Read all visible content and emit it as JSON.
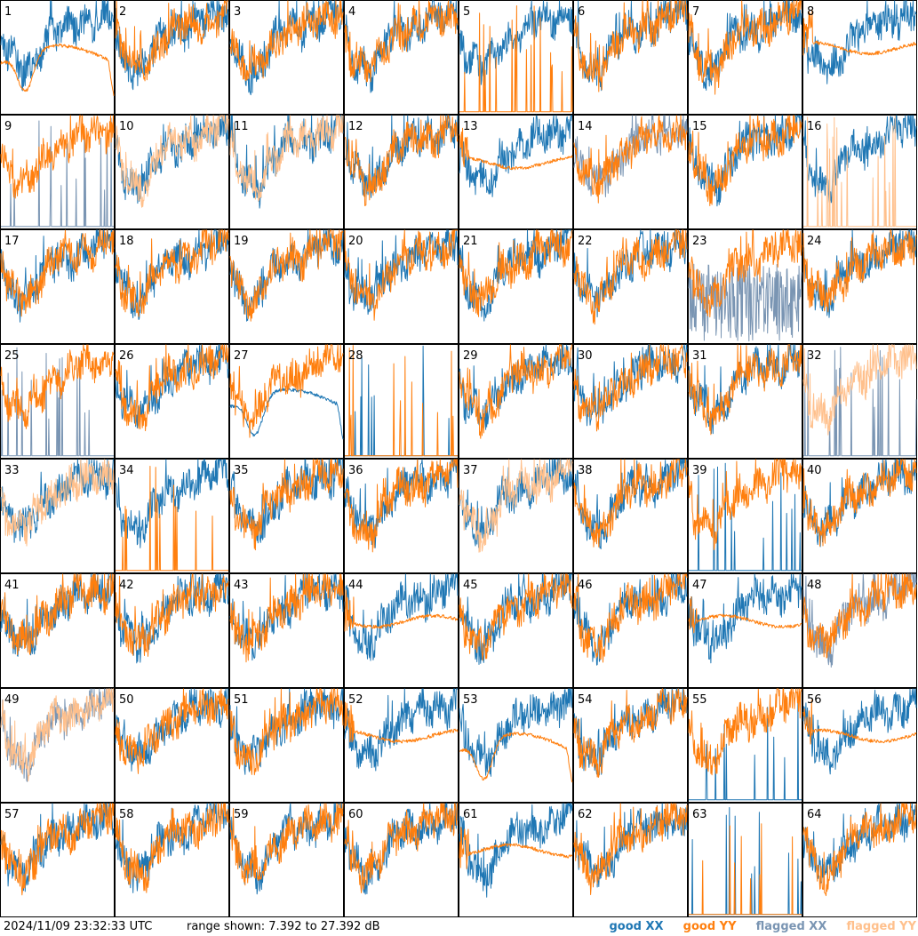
{
  "chart_data": {
    "type": "line",
    "panels": [
      {
        "label": "1",
        "xx": "good",
        "yy": "good",
        "xx_mode": "normal",
        "yy_mode": "dip"
      },
      {
        "label": "2",
        "xx": "good",
        "yy": "good",
        "xx_mode": "normal",
        "yy_mode": "normal"
      },
      {
        "label": "3",
        "xx": "good",
        "yy": "good",
        "xx_mode": "normal",
        "yy_mode": "normal"
      },
      {
        "label": "4",
        "xx": "good",
        "yy": "good",
        "xx_mode": "normal",
        "yy_mode": "normal"
      },
      {
        "label": "5",
        "xx": "good",
        "yy": "good",
        "xx_mode": "normal",
        "yy_mode": "spiky"
      },
      {
        "label": "6",
        "xx": "good",
        "yy": "good",
        "xx_mode": "normal",
        "yy_mode": "normal"
      },
      {
        "label": "7",
        "xx": "good",
        "yy": "good",
        "xx_mode": "normal",
        "yy_mode": "normal"
      },
      {
        "label": "8",
        "xx": "good",
        "yy": "good",
        "xx_mode": "normal",
        "yy_mode": "smooth"
      },
      {
        "label": "9",
        "xx": "flagged",
        "yy": "good",
        "xx_mode": "spiky",
        "yy_mode": "normal"
      },
      {
        "label": "10",
        "xx": "good",
        "yy": "flagged",
        "xx_mode": "normal",
        "yy_mode": "normal"
      },
      {
        "label": "11",
        "xx": "good",
        "yy": "flagged",
        "xx_mode": "normal",
        "yy_mode": "normal"
      },
      {
        "label": "12",
        "xx": "good",
        "yy": "good",
        "xx_mode": "normal",
        "yy_mode": "normal"
      },
      {
        "label": "13",
        "xx": "good",
        "yy": "good",
        "xx_mode": "normal",
        "yy_mode": "smooth"
      },
      {
        "label": "14",
        "xx": "flagged",
        "yy": "good",
        "xx_mode": "normal",
        "yy_mode": "normal"
      },
      {
        "label": "15",
        "xx": "good",
        "yy": "good",
        "xx_mode": "normal",
        "yy_mode": "normal"
      },
      {
        "label": "16",
        "xx": "good",
        "yy": "flagged",
        "xx_mode": "normal",
        "yy_mode": "spiky"
      },
      {
        "label": "17",
        "xx": "good",
        "yy": "good",
        "xx_mode": "normal",
        "yy_mode": "normal"
      },
      {
        "label": "18",
        "xx": "good",
        "yy": "good",
        "xx_mode": "normal",
        "yy_mode": "normal"
      },
      {
        "label": "19",
        "xx": "good",
        "yy": "good",
        "xx_mode": "normal",
        "yy_mode": "normal"
      },
      {
        "label": "20",
        "xx": "good",
        "yy": "good",
        "xx_mode": "normal",
        "yy_mode": "normal"
      },
      {
        "label": "21",
        "xx": "good",
        "yy": "good",
        "xx_mode": "normal",
        "yy_mode": "normal"
      },
      {
        "label": "22",
        "xx": "good",
        "yy": "good",
        "xx_mode": "normal",
        "yy_mode": "normal"
      },
      {
        "label": "23",
        "xx": "flagged",
        "yy": "good",
        "xx_mode": "noisy",
        "yy_mode": "normal"
      },
      {
        "label": "24",
        "xx": "good",
        "yy": "good",
        "xx_mode": "normal",
        "yy_mode": "normal"
      },
      {
        "label": "25",
        "xx": "flagged",
        "yy": "good",
        "xx_mode": "spiky",
        "yy_mode": "normal"
      },
      {
        "label": "26",
        "xx": "good",
        "yy": "good",
        "xx_mode": "normal",
        "yy_mode": "normal"
      },
      {
        "label": "27",
        "xx": "good",
        "yy": "good",
        "xx_mode": "dip",
        "yy_mode": "normal"
      },
      {
        "label": "28",
        "xx": "good",
        "yy": "good",
        "xx_mode": "spiky",
        "yy_mode": "spiky"
      },
      {
        "label": "29",
        "xx": "good",
        "yy": "good",
        "xx_mode": "normal",
        "yy_mode": "normal"
      },
      {
        "label": "30",
        "xx": "good",
        "yy": "good",
        "xx_mode": "normal",
        "yy_mode": "normal"
      },
      {
        "label": "31",
        "xx": "good",
        "yy": "good",
        "xx_mode": "normal",
        "yy_mode": "normal"
      },
      {
        "label": "32",
        "xx": "flagged",
        "yy": "flagged",
        "xx_mode": "spiky",
        "yy_mode": "normal"
      },
      {
        "label": "33",
        "xx": "good",
        "yy": "flagged",
        "xx_mode": "normal",
        "yy_mode": "normal"
      },
      {
        "label": "34",
        "xx": "good",
        "yy": "good",
        "xx_mode": "normal",
        "yy_mode": "spiky"
      },
      {
        "label": "35",
        "xx": "good",
        "yy": "good",
        "xx_mode": "normal",
        "yy_mode": "normal"
      },
      {
        "label": "36",
        "xx": "good",
        "yy": "good",
        "xx_mode": "normal",
        "yy_mode": "normal"
      },
      {
        "label": "37",
        "xx": "good",
        "yy": "flagged",
        "xx_mode": "normal",
        "yy_mode": "normal"
      },
      {
        "label": "38",
        "xx": "good",
        "yy": "good",
        "xx_mode": "normal",
        "yy_mode": "normal"
      },
      {
        "label": "39",
        "xx": "good",
        "yy": "good",
        "xx_mode": "spiky",
        "yy_mode": "normal"
      },
      {
        "label": "40",
        "xx": "good",
        "yy": "good",
        "xx_mode": "normal",
        "yy_mode": "normal"
      },
      {
        "label": "41",
        "xx": "good",
        "yy": "good",
        "xx_mode": "normal",
        "yy_mode": "normal"
      },
      {
        "label": "42",
        "xx": "good",
        "yy": "good",
        "xx_mode": "normal",
        "yy_mode": "normal"
      },
      {
        "label": "43",
        "xx": "good",
        "yy": "good",
        "xx_mode": "normal",
        "yy_mode": "normal"
      },
      {
        "label": "44",
        "xx": "good",
        "yy": "good",
        "xx_mode": "normal",
        "yy_mode": "smooth"
      },
      {
        "label": "45",
        "xx": "good",
        "yy": "good",
        "xx_mode": "normal",
        "yy_mode": "normal"
      },
      {
        "label": "46",
        "xx": "good",
        "yy": "good",
        "xx_mode": "normal",
        "yy_mode": "normal"
      },
      {
        "label": "47",
        "xx": "good",
        "yy": "good",
        "xx_mode": "normal",
        "yy_mode": "smooth"
      },
      {
        "label": "48",
        "xx": "flagged",
        "yy": "good",
        "xx_mode": "normal",
        "yy_mode": "normal"
      },
      {
        "label": "49",
        "xx": "flagged",
        "yy": "flagged",
        "xx_mode": "normal",
        "yy_mode": "normal"
      },
      {
        "label": "50",
        "xx": "good",
        "yy": "good",
        "xx_mode": "normal",
        "yy_mode": "normal"
      },
      {
        "label": "51",
        "xx": "good",
        "yy": "good",
        "xx_mode": "normal",
        "yy_mode": "normal"
      },
      {
        "label": "52",
        "xx": "good",
        "yy": "good",
        "xx_mode": "normal",
        "yy_mode": "smooth"
      },
      {
        "label": "53",
        "xx": "good",
        "yy": "good",
        "xx_mode": "normal",
        "yy_mode": "dip"
      },
      {
        "label": "54",
        "xx": "good",
        "yy": "good",
        "xx_mode": "normal",
        "yy_mode": "normal"
      },
      {
        "label": "55",
        "xx": "good",
        "yy": "good",
        "xx_mode": "spiky",
        "yy_mode": "normal"
      },
      {
        "label": "56",
        "xx": "good",
        "yy": "good",
        "xx_mode": "normal",
        "yy_mode": "smooth"
      },
      {
        "label": "57",
        "xx": "good",
        "yy": "good",
        "xx_mode": "normal",
        "yy_mode": "normal"
      },
      {
        "label": "58",
        "xx": "good",
        "yy": "good",
        "xx_mode": "normal",
        "yy_mode": "normal"
      },
      {
        "label": "59",
        "xx": "good",
        "yy": "good",
        "xx_mode": "normal",
        "yy_mode": "normal"
      },
      {
        "label": "60",
        "xx": "good",
        "yy": "good",
        "xx_mode": "normal",
        "yy_mode": "normal"
      },
      {
        "label": "61",
        "xx": "good",
        "yy": "good",
        "xx_mode": "normal",
        "yy_mode": "smooth"
      },
      {
        "label": "62",
        "xx": "good",
        "yy": "good",
        "xx_mode": "normal",
        "yy_mode": "normal"
      },
      {
        "label": "63",
        "xx": "good",
        "yy": "good",
        "xx_mode": "spiky",
        "yy_mode": "spiky"
      },
      {
        "label": "64",
        "xx": "good",
        "yy": "good",
        "xx_mode": "normal",
        "yy_mode": "normal"
      }
    ],
    "range_db": [
      7.392,
      27.392
    ],
    "colors": {
      "good_xx": "#1f77b4",
      "good_yy": "#ff7f0e",
      "flagged_xx": "#7a95b3",
      "flagged_yy": "#ffc08c"
    }
  },
  "footer": {
    "timestamp": "2024/11/09 23:32:33 UTC",
    "range": "range shown: 7.392 to 27.392 dB",
    "legend": {
      "good_xx": "good XX",
      "good_yy": "good YY",
      "flagged_xx": "flagged XX",
      "flagged_yy": "flagged YY"
    }
  }
}
